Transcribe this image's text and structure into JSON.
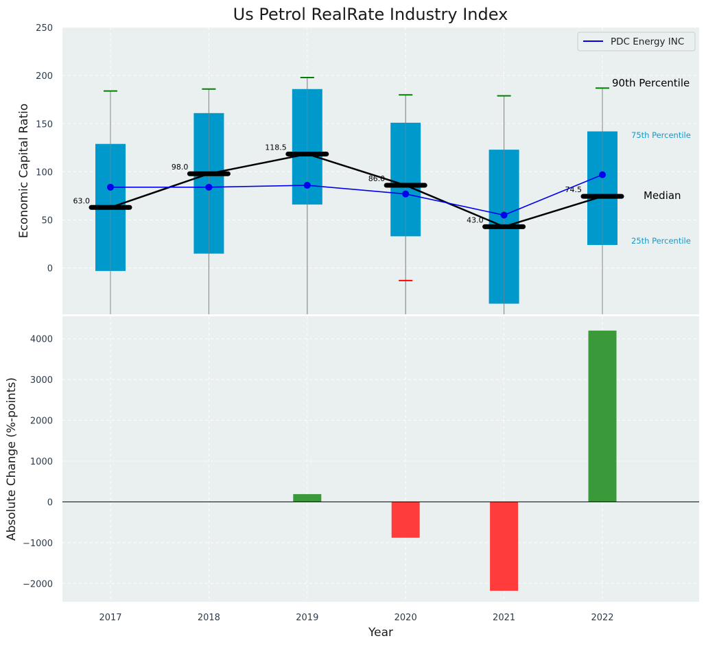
{
  "chart_data": {
    "title": "Us Petrol RealRate Industry Index",
    "colors": {
      "background": "#eaeff0",
      "box": "#0099cc",
      "whisker": "#888888",
      "p90_cap": "#008000",
      "p10_cap_low": "#ff0000",
      "median_line": "#000000",
      "company_line": "#0000ee",
      "bar_positive": "#3a9a3a",
      "bar_negative": "#ff3c3c",
      "percentile_text": "#1199cc"
    },
    "top": {
      "type": "box",
      "ylabel": "Economic Capital Ratio",
      "ylim": [
        -48,
        250
      ],
      "yticks": [
        0,
        50,
        100,
        150,
        200,
        250
      ],
      "categories": [
        "2017",
        "2018",
        "2019",
        "2020",
        "2021",
        "2022"
      ],
      "p25": [
        -3,
        15,
        66,
        33,
        -37,
        24
      ],
      "p75": [
        129,
        161,
        186,
        151,
        123,
        142
      ],
      "p90": [
        184,
        186,
        198,
        180,
        179,
        187
      ],
      "p10": [
        null,
        null,
        null,
        -13,
        null,
        null
      ],
      "median": [
        63.0,
        98.0,
        118.5,
        86.0,
        43.0,
        74.5
      ],
      "median_labels": [
        "63.0",
        "98.0",
        "118.5",
        "86.0",
        "43.0",
        "74.5"
      ],
      "series": [
        {
          "name": "PDC Energy INC",
          "values": [
            84,
            84,
            86,
            77,
            55,
            97
          ]
        }
      ],
      "annotations": {
        "p90": "90th Percentile",
        "p75": "75th Percentile",
        "median": "Median",
        "p25": "25th Percentile"
      },
      "legend_position": "top-right"
    },
    "bottom": {
      "type": "bar",
      "ylabel": "Absolute Change (%-points)",
      "xlabel": "Year",
      "ylim": [
        -2450,
        4550
      ],
      "yticks": [
        -2000,
        -1000,
        0,
        1000,
        2000,
        3000,
        4000
      ],
      "ytick_labels": [
        "−2000",
        "−1000",
        "0",
        "1000",
        "2000",
        "3000",
        "4000"
      ],
      "categories": [
        "2017",
        "2018",
        "2019",
        "2020",
        "2021",
        "2022"
      ],
      "values": [
        0,
        0,
        190,
        -880,
        -2180,
        4200
      ]
    }
  }
}
